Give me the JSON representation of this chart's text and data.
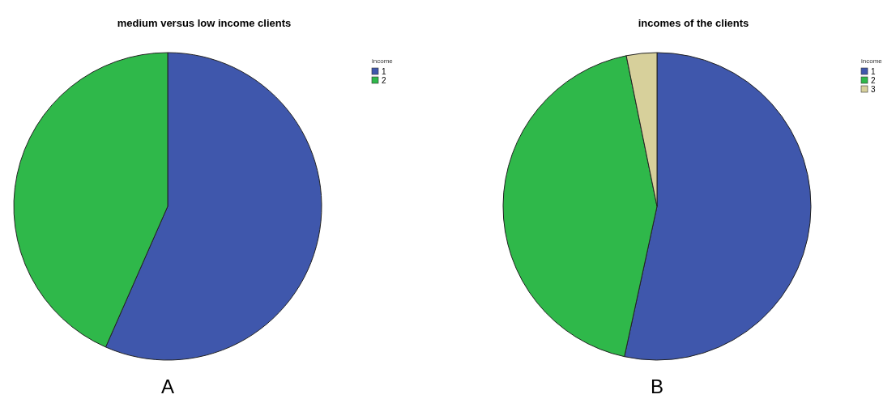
{
  "chart_data": [
    {
      "type": "pie",
      "title": "medium versus low income clients",
      "legend_title": "income",
      "categories": [
        "1",
        "2"
      ],
      "values": [
        56.6,
        43.4
      ],
      "colors": [
        "#3f57ac",
        "#2fb84a"
      ],
      "legend": "top right",
      "annotations": [
        "A"
      ]
    },
    {
      "type": "pie",
      "title": "incomes of the clients",
      "legend_title": "income",
      "categories": [
        "1",
        "2",
        "3"
      ],
      "values": [
        53.4,
        43.4,
        3.2
      ],
      "colors": [
        "#3f57ac",
        "#2fb84a",
        "#d7d09b"
      ],
      "legend": "top right",
      "annotations": [
        "B"
      ]
    }
  ]
}
